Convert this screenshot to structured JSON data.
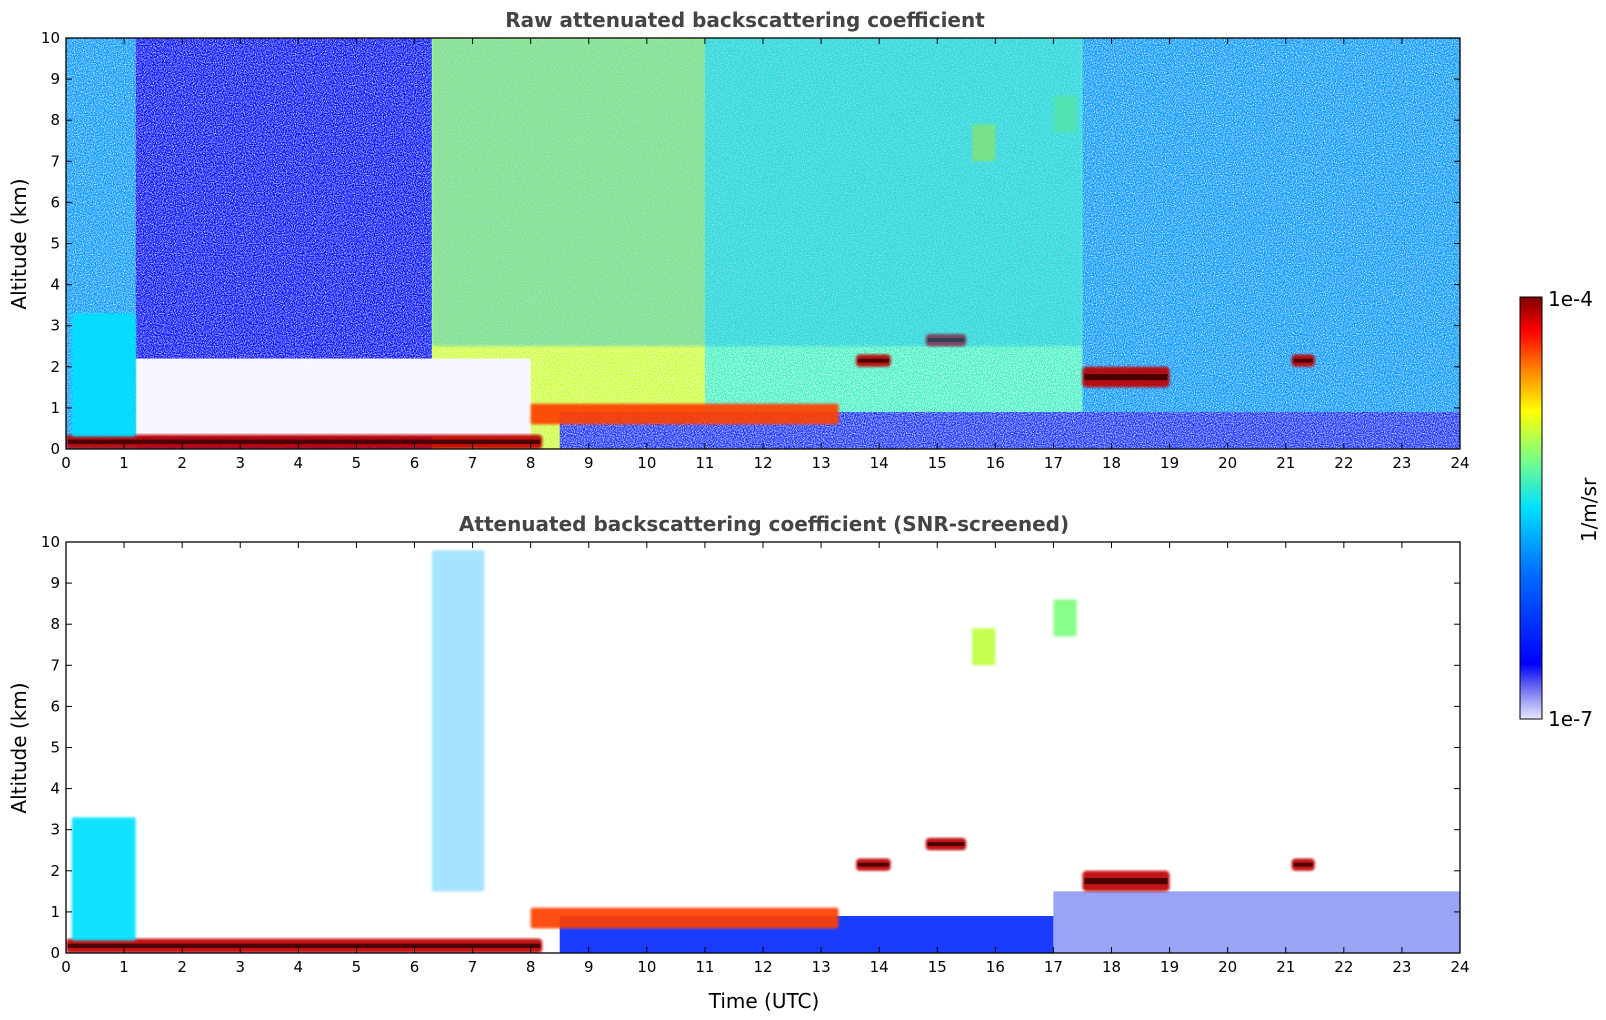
{
  "chart_data": [
    {
      "type": "heatmap",
      "title": "Raw attenuated backscattering coefficient",
      "xlabel": "",
      "ylabel": "Altitude (km)",
      "xlim": [
        0,
        24
      ],
      "ylim": [
        0,
        10
      ],
      "xticks": [
        0,
        1,
        2,
        3,
        4,
        5,
        6,
        7,
        8,
        9,
        10,
        11,
        12,
        13,
        14,
        15,
        16,
        17,
        18,
        19,
        20,
        21,
        22,
        23,
        24
      ],
      "yticks": [
        0,
        1,
        2,
        3,
        4,
        5,
        6,
        7,
        8,
        9,
        10
      ],
      "features": [
        {
          "name": "boundary-layer-aerosol",
          "x": [
            0,
            8.2
          ],
          "y": [
            0,
            0.35
          ],
          "level": 0.95
        },
        {
          "name": "morning-plume",
          "x": [
            0.1,
            1.2
          ],
          "y": [
            0.3,
            3.3
          ],
          "level": 0.5
        },
        {
          "name": "rising-layer",
          "x": [
            8,
            13.3
          ],
          "y": [
            0.6,
            1.1
          ],
          "level": 0.85
        },
        {
          "name": "cloud-14h",
          "x": [
            13.6,
            14.2
          ],
          "y": [
            2.0,
            2.3
          ],
          "level": 0.95
        },
        {
          "name": "cloud-15h",
          "x": [
            14.8,
            15.5
          ],
          "y": [
            2.5,
            2.8
          ],
          "level": 0.95
        },
        {
          "name": "cloud-18h",
          "x": [
            17.5,
            19
          ],
          "y": [
            1.5,
            2.0
          ],
          "level": 0.95
        },
        {
          "name": "cloud-21h",
          "x": [
            21.1,
            21.5
          ],
          "y": [
            2.0,
            2.3
          ],
          "level": 0.95
        },
        {
          "name": "cirrus-16h",
          "x": [
            15.6,
            16
          ],
          "y": [
            7.0,
            7.9
          ],
          "level": 0.65
        },
        {
          "name": "cirrus-17h",
          "x": [
            17,
            17.4
          ],
          "y": [
            7.7,
            8.6
          ],
          "level": 0.6
        },
        {
          "name": "upper-noise",
          "x": [
            6.3,
            17.5
          ],
          "y": [
            2.5,
            10
          ],
          "level": 0.45
        }
      ]
    },
    {
      "type": "heatmap",
      "title": "Attenuated backscattering coefficient (SNR-screened)",
      "xlabel": "Time (UTC)",
      "ylabel": "Altitude (km)",
      "xlim": [
        0,
        24
      ],
      "ylim": [
        0,
        10
      ],
      "xticks": [
        0,
        1,
        2,
        3,
        4,
        5,
        6,
        7,
        8,
        9,
        10,
        11,
        12,
        13,
        14,
        15,
        16,
        17,
        18,
        19,
        20,
        21,
        22,
        23,
        24
      ],
      "yticks": [
        0,
        1,
        2,
        3,
        4,
        5,
        6,
        7,
        8,
        9,
        10
      ],
      "features": [
        {
          "name": "boundary-layer-aerosol",
          "x": [
            0,
            8.2
          ],
          "y": [
            0,
            0.35
          ],
          "level": 0.95
        },
        {
          "name": "morning-plume",
          "x": [
            0.1,
            1.2
          ],
          "y": [
            0.3,
            3.3
          ],
          "level": 0.5
        },
        {
          "name": "rising-layer",
          "x": [
            8,
            13.3
          ],
          "y": [
            0.6,
            1.1
          ],
          "level": 0.85
        },
        {
          "name": "cloud-14h",
          "x": [
            13.6,
            14.2
          ],
          "y": [
            2.0,
            2.3
          ],
          "level": 0.95
        },
        {
          "name": "cloud-15h",
          "x": [
            14.8,
            15.5
          ],
          "y": [
            2.5,
            2.8
          ],
          "level": 0.95
        },
        {
          "name": "cloud-18h",
          "x": [
            17.5,
            19
          ],
          "y": [
            1.5,
            2.0
          ],
          "level": 0.95
        },
        {
          "name": "cloud-21h",
          "x": [
            21.1,
            21.5
          ],
          "y": [
            2.0,
            2.3
          ],
          "level": 0.95
        },
        {
          "name": "cirrus-16h",
          "x": [
            15.6,
            16
          ],
          "y": [
            7.0,
            7.9
          ],
          "level": 0.65
        },
        {
          "name": "cirrus-17h",
          "x": [
            17,
            17.4
          ],
          "y": [
            7.7,
            8.6
          ],
          "level": 0.6
        },
        {
          "name": "sparse-column-7h",
          "x": [
            6.3,
            7.2
          ],
          "y": [
            1.5,
            9.8
          ],
          "level": 0.45
        }
      ]
    }
  ],
  "colorbar": {
    "label": "1/m/sr",
    "max_label": "1e-4",
    "min_label": "1e-7",
    "colors": [
      "#7f0000",
      "#ff0000",
      "#ff8000",
      "#ffff00",
      "#80ff80",
      "#00ffff",
      "#0080ff",
      "#0000ff",
      "#0000e0",
      "#d8d8ff"
    ]
  }
}
